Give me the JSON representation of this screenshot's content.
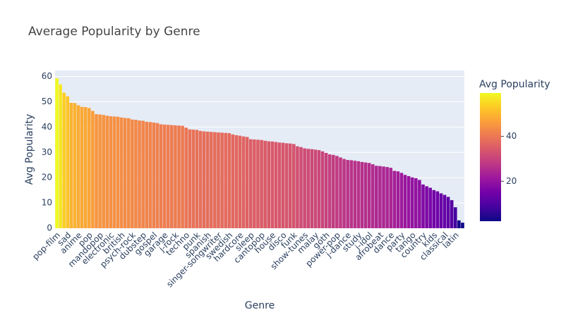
{
  "chart_data": {
    "type": "bar",
    "title": "Average Popularity by Genre",
    "x_label": "Genre",
    "y_label": "Avg Popularity",
    "colorbar_title": "Avg Popularity",
    "categories": [
      "pop-film",
      null,
      null,
      "sad",
      null,
      null,
      "anime",
      null,
      null,
      "pop",
      null,
      null,
      "mandopop",
      null,
      null,
      "electronic",
      null,
      null,
      "british",
      null,
      null,
      "psych-rock",
      null,
      null,
      "dubstep",
      null,
      null,
      "gospel",
      null,
      null,
      "garage",
      null,
      null,
      "j-rock",
      null,
      null,
      "techno",
      null,
      null,
      "punk",
      null,
      null,
      "spanish",
      null,
      null,
      "singer-songwriter",
      null,
      null,
      "swedish",
      null,
      null,
      "hardcore",
      null,
      null,
      "sleep",
      null,
      null,
      "cantopop",
      null,
      null,
      "house",
      null,
      null,
      "disco",
      null,
      null,
      "funk",
      null,
      null,
      "show-tunes",
      null,
      null,
      "malay",
      null,
      null,
      "goth",
      null,
      null,
      "power-pop",
      null,
      null,
      "j-dance",
      null,
      null,
      "study",
      null,
      null,
      "j-idol",
      null,
      null,
      "afrobeat",
      null,
      null,
      "dance",
      null,
      null,
      "party",
      null,
      null,
      "tango",
      null,
      null,
      "country",
      null,
      null,
      "kids",
      null,
      null,
      "classical",
      null,
      null,
      "latin",
      null,
      null
    ],
    "values": [
      59.3,
      56.9,
      53.6,
      52.2,
      49.6,
      49.5,
      48.6,
      48.0,
      47.9,
      47.5,
      46.4,
      45.1,
      45.0,
      44.8,
      44.5,
      44.3,
      44.2,
      44.1,
      43.8,
      43.6,
      43.5,
      43.0,
      42.9,
      42.6,
      42.5,
      42.1,
      42.0,
      41.8,
      41.6,
      41.1,
      41.0,
      40.9,
      40.8,
      40.7,
      40.6,
      40.5,
      39.8,
      39.1,
      39.0,
      38.9,
      38.5,
      38.3,
      38.2,
      38.1,
      38.0,
      37.9,
      37.8,
      37.7,
      37.6,
      37.1,
      36.8,
      36.6,
      36.3,
      36.1,
      35.2,
      35.1,
      35.0,
      34.9,
      34.6,
      34.4,
      34.3,
      34.1,
      33.9,
      33.8,
      33.6,
      33.5,
      33.3,
      32.4,
      32.1,
      31.6,
      31.4,
      31.3,
      31.1,
      30.9,
      30.4,
      29.8,
      29.2,
      29.0,
      28.6,
      28.0,
      27.4,
      27.0,
      26.9,
      26.7,
      26.5,
      26.2,
      26.0,
      25.8,
      25.3,
      24.7,
      24.6,
      24.4,
      24.2,
      23.9,
      22.7,
      22.5,
      21.9,
      21.1,
      20.6,
      20.1,
      19.8,
      19.1,
      17.3,
      16.6,
      16.0,
      15.1,
      14.6,
      13.8,
      13.2,
      12.4,
      11.1,
      8.3,
      3.1,
      2.2
    ],
    "ylim": [
      0,
      62.4
    ],
    "yticks": [
      0,
      10,
      20,
      30,
      40,
      50,
      60
    ],
    "colorbar_ticks": [
      20,
      40
    ],
    "colorscale": [
      "#0d0887",
      "#46039f",
      "#7201a8",
      "#9c179e",
      "#bd3786",
      "#d8576b",
      "#ed7953",
      "#fb9f3a",
      "#fdca26",
      "#f0f921"
    ],
    "grid": true
  }
}
